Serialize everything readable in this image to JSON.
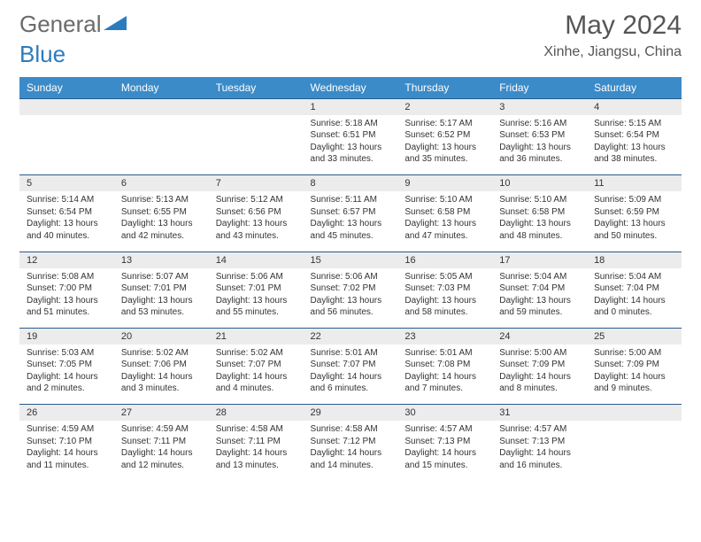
{
  "logo": {
    "text1": "General",
    "text2": "Blue"
  },
  "title": "May 2024",
  "location": "Xinhe, Jiangsu, China",
  "header_color": "#3b8bc9",
  "border_color": "#2a5a8a",
  "daynum_bg": "#ececec",
  "dayNames": [
    "Sunday",
    "Monday",
    "Tuesday",
    "Wednesday",
    "Thursday",
    "Friday",
    "Saturday"
  ],
  "weeks": [
    [
      null,
      null,
      null,
      {
        "n": "1",
        "sr": "5:18 AM",
        "ss": "6:51 PM",
        "dl": "13 hours and 33 minutes."
      },
      {
        "n": "2",
        "sr": "5:17 AM",
        "ss": "6:52 PM",
        "dl": "13 hours and 35 minutes."
      },
      {
        "n": "3",
        "sr": "5:16 AM",
        "ss": "6:53 PM",
        "dl": "13 hours and 36 minutes."
      },
      {
        "n": "4",
        "sr": "5:15 AM",
        "ss": "6:54 PM",
        "dl": "13 hours and 38 minutes."
      }
    ],
    [
      {
        "n": "5",
        "sr": "5:14 AM",
        "ss": "6:54 PM",
        "dl": "13 hours and 40 minutes."
      },
      {
        "n": "6",
        "sr": "5:13 AM",
        "ss": "6:55 PM",
        "dl": "13 hours and 42 minutes."
      },
      {
        "n": "7",
        "sr": "5:12 AM",
        "ss": "6:56 PM",
        "dl": "13 hours and 43 minutes."
      },
      {
        "n": "8",
        "sr": "5:11 AM",
        "ss": "6:57 PM",
        "dl": "13 hours and 45 minutes."
      },
      {
        "n": "9",
        "sr": "5:10 AM",
        "ss": "6:58 PM",
        "dl": "13 hours and 47 minutes."
      },
      {
        "n": "10",
        "sr": "5:10 AM",
        "ss": "6:58 PM",
        "dl": "13 hours and 48 minutes."
      },
      {
        "n": "11",
        "sr": "5:09 AM",
        "ss": "6:59 PM",
        "dl": "13 hours and 50 minutes."
      }
    ],
    [
      {
        "n": "12",
        "sr": "5:08 AM",
        "ss": "7:00 PM",
        "dl": "13 hours and 51 minutes."
      },
      {
        "n": "13",
        "sr": "5:07 AM",
        "ss": "7:01 PM",
        "dl": "13 hours and 53 minutes."
      },
      {
        "n": "14",
        "sr": "5:06 AM",
        "ss": "7:01 PM",
        "dl": "13 hours and 55 minutes."
      },
      {
        "n": "15",
        "sr": "5:06 AM",
        "ss": "7:02 PM",
        "dl": "13 hours and 56 minutes."
      },
      {
        "n": "16",
        "sr": "5:05 AM",
        "ss": "7:03 PM",
        "dl": "13 hours and 58 minutes."
      },
      {
        "n": "17",
        "sr": "5:04 AM",
        "ss": "7:04 PM",
        "dl": "13 hours and 59 minutes."
      },
      {
        "n": "18",
        "sr": "5:04 AM",
        "ss": "7:04 PM",
        "dl": "14 hours and 0 minutes."
      }
    ],
    [
      {
        "n": "19",
        "sr": "5:03 AM",
        "ss": "7:05 PM",
        "dl": "14 hours and 2 minutes."
      },
      {
        "n": "20",
        "sr": "5:02 AM",
        "ss": "7:06 PM",
        "dl": "14 hours and 3 minutes."
      },
      {
        "n": "21",
        "sr": "5:02 AM",
        "ss": "7:07 PM",
        "dl": "14 hours and 4 minutes."
      },
      {
        "n": "22",
        "sr": "5:01 AM",
        "ss": "7:07 PM",
        "dl": "14 hours and 6 minutes."
      },
      {
        "n": "23",
        "sr": "5:01 AM",
        "ss": "7:08 PM",
        "dl": "14 hours and 7 minutes."
      },
      {
        "n": "24",
        "sr": "5:00 AM",
        "ss": "7:09 PM",
        "dl": "14 hours and 8 minutes."
      },
      {
        "n": "25",
        "sr": "5:00 AM",
        "ss": "7:09 PM",
        "dl": "14 hours and 9 minutes."
      }
    ],
    [
      {
        "n": "26",
        "sr": "4:59 AM",
        "ss": "7:10 PM",
        "dl": "14 hours and 11 minutes."
      },
      {
        "n": "27",
        "sr": "4:59 AM",
        "ss": "7:11 PM",
        "dl": "14 hours and 12 minutes."
      },
      {
        "n": "28",
        "sr": "4:58 AM",
        "ss": "7:11 PM",
        "dl": "14 hours and 13 minutes."
      },
      {
        "n": "29",
        "sr": "4:58 AM",
        "ss": "7:12 PM",
        "dl": "14 hours and 14 minutes."
      },
      {
        "n": "30",
        "sr": "4:57 AM",
        "ss": "7:13 PM",
        "dl": "14 hours and 15 minutes."
      },
      {
        "n": "31",
        "sr": "4:57 AM",
        "ss": "7:13 PM",
        "dl": "14 hours and 16 minutes."
      },
      null
    ]
  ],
  "labels": {
    "sunrise": "Sunrise:",
    "sunset": "Sunset:",
    "daylight": "Daylight:"
  }
}
